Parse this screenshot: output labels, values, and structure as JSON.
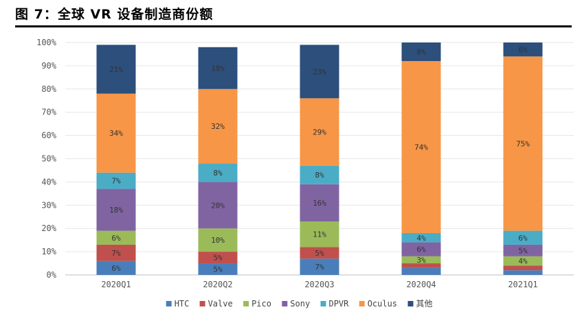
{
  "header": {
    "title": "图 7：全球 VR 设备制造商份额"
  },
  "chart_data": {
    "type": "bar",
    "stacked": true,
    "normalized": true,
    "categories": [
      "2020Q1",
      "2020Q2",
      "2020Q3",
      "2020Q4",
      "2021Q1"
    ],
    "yticks": [
      "0%",
      "10%",
      "20%",
      "30%",
      "40%",
      "50%",
      "60%",
      "70%",
      "80%",
      "90%",
      "100%"
    ],
    "ylim": [
      0,
      100
    ],
    "legend_position": "bottom",
    "series": [
      {
        "name": "HTC",
        "color": "#4a7ebb",
        "values": [
          6,
          5,
          7,
          3,
          2
        ],
        "labels": [
          "6%",
          "5%",
          "7%",
          "",
          ""
        ]
      },
      {
        "name": "Valve",
        "color": "#c0504d",
        "values": [
          7,
          5,
          5,
          2,
          2
        ],
        "labels": [
          "7%",
          "5%",
          "5%",
          "",
          ""
        ]
      },
      {
        "name": "Pico",
        "color": "#9bbb59",
        "values": [
          6,
          10,
          11,
          3,
          4
        ],
        "labels": [
          "6%",
          "10%",
          "11%",
          "3%",
          "4%"
        ]
      },
      {
        "name": "Sony",
        "color": "#8064a2",
        "values": [
          18,
          20,
          16,
          6,
          5
        ],
        "labels": [
          "18%",
          "20%",
          "16%",
          "6%",
          "5%"
        ]
      },
      {
        "name": "DPVR",
        "color": "#4bacc6",
        "values": [
          7,
          8,
          8,
          4,
          6
        ],
        "labels": [
          "7%",
          "8%",
          "8%",
          "4%",
          "6%"
        ]
      },
      {
        "name": "Oculus",
        "color": "#f79646",
        "values": [
          34,
          32,
          29,
          74,
          75
        ],
        "labels": [
          "34%",
          "32%",
          "29%",
          "74%",
          "75%"
        ]
      },
      {
        "name": "其他",
        "color": "#2c4f7c",
        "values": [
          21,
          18,
          23,
          8,
          6
        ],
        "labels": [
          "21%",
          "18%",
          "23%",
          "8%",
          "6%"
        ]
      }
    ]
  }
}
